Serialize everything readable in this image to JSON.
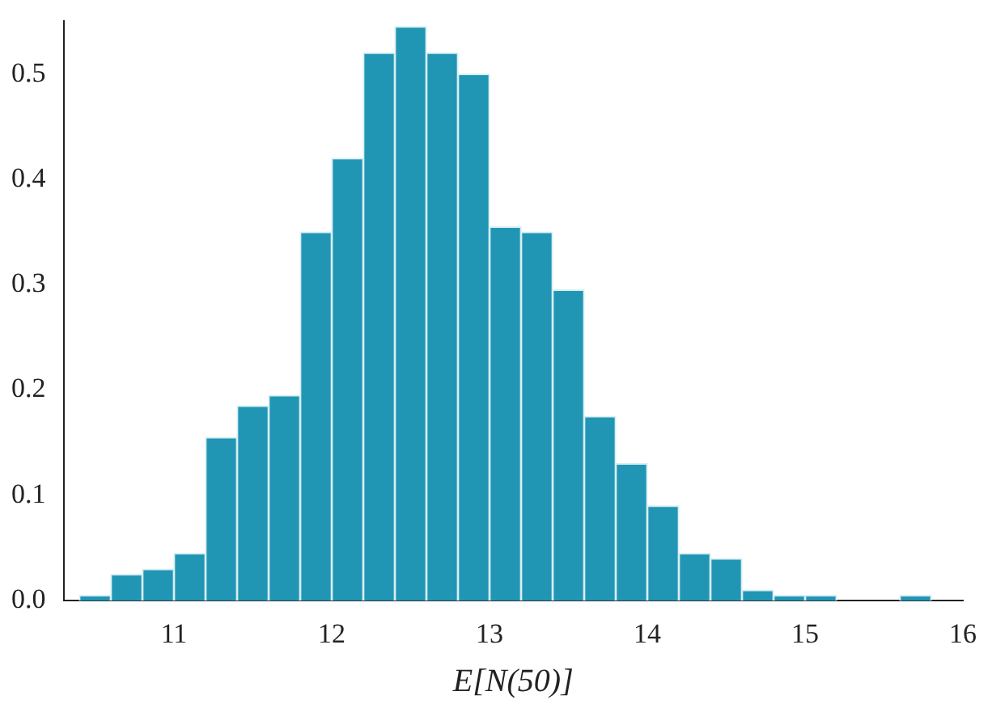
{
  "chart_data": {
    "type": "histogram",
    "xlabel": "E[N(50)]",
    "bins": [
      10.4,
      10.6,
      10.8,
      11.0,
      11.2,
      11.4,
      11.6,
      11.8,
      12.0,
      12.2,
      12.4,
      12.6,
      12.8,
      13.0,
      13.2,
      13.4,
      13.6,
      13.8,
      14.0,
      14.2,
      14.4,
      14.6,
      14.8,
      15.0,
      15.2,
      15.4,
      15.6,
      15.8
    ],
    "values": [
      0.005,
      0.025,
      0.03,
      0.045,
      0.155,
      0.185,
      0.195,
      0.35,
      0.42,
      0.52,
      0.545,
      0.52,
      0.5,
      0.355,
      0.35,
      0.295,
      0.175,
      0.13,
      0.09,
      0.045,
      0.04,
      0.01,
      0.005,
      0.005,
      0,
      0,
      0.005
    ],
    "color": "#2196b4",
    "xlim": [
      10.3,
      16
    ],
    "xticks": [
      11,
      12,
      13,
      14,
      15,
      16
    ],
    "ylim": [
      0,
      0.55
    ],
    "yticks": [
      {
        "value": 0,
        "label": "0.0"
      },
      {
        "value": 0.1,
        "label": "0.1"
      },
      {
        "value": 0.2,
        "label": "0.2"
      },
      {
        "value": 0.3,
        "label": "0.3"
      },
      {
        "value": 0.4,
        "label": "0.4"
      },
      {
        "value": 0.5,
        "label": "0.5"
      }
    ],
    "grid": false
  }
}
